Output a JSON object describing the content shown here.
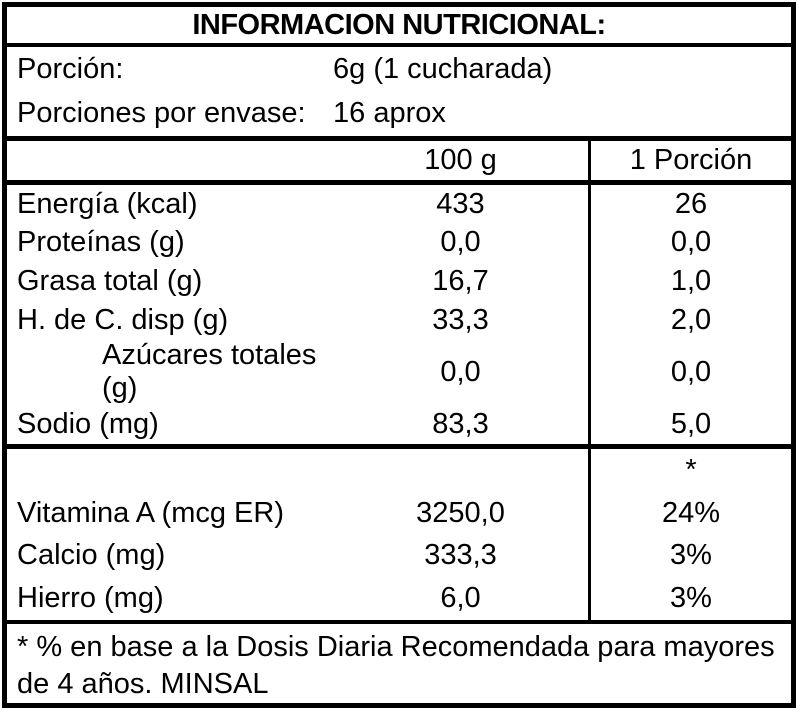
{
  "title": "INFORMACION NUTRICIONAL:",
  "serving": {
    "rows": [
      {
        "label": "Porción:",
        "value": "6g (1 cucharada)"
      },
      {
        "label": "Porciones por envase:",
        "value": "16 aprox"
      }
    ]
  },
  "columns": {
    "per100g_label": "100 g",
    "portion_label": "1 Porción"
  },
  "nutrients": [
    {
      "label": "Energía (kcal)",
      "per100g": "433",
      "per_portion": "26"
    },
    {
      "label": "Proteínas (g)",
      "per100g": "0,0",
      "per_portion": "0,0"
    },
    {
      "label": "Grasa total (g)",
      "per100g": "16,7",
      "per_portion": "1,0"
    },
    {
      "label": "H. de C. disp (g)",
      "per100g": "33,3",
      "per_portion": "2,0"
    },
    {
      "label": "Azúcares totales (g)",
      "per100g": "0,0",
      "per_portion": "0,0"
    },
    {
      "label": "Sodio (mg)",
      "per100g": "83,3",
      "per_portion": "5,0"
    }
  ],
  "dv_section": {
    "asterisk": "*",
    "rows": [
      {
        "label": "Vitamina A (mcg ER)",
        "per100g": "3250,0",
        "per_portion": "24%"
      },
      {
        "label": "Calcio (mg)",
        "per100g": "333,3",
        "per_portion": "3%"
      },
      {
        "label": "Hierro (mg)",
        "per100g": "6,0",
        "per_portion": "3%"
      }
    ]
  },
  "footnote": {
    "lines": [
      "* % en base a la Dosis Diaria Recomendada para mayores",
      "de 4 años. MINSAL"
    ]
  },
  "colors": {
    "border": "#000000",
    "background": "#ffffff",
    "text": "#000000"
  }
}
